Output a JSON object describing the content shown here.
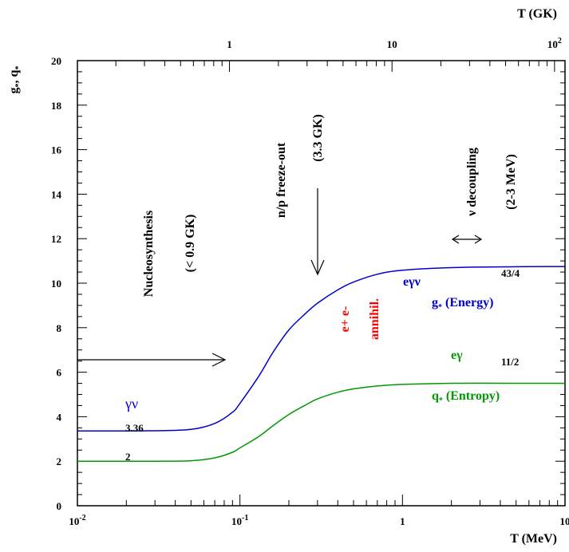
{
  "chart_data": {
    "type": "line",
    "title": "",
    "xlabel": "T (MeV)",
    "ylabel": "g*, q*",
    "top_xlabel": "T (GK)",
    "x_scale": "log",
    "xlim": [
      0.01,
      10
    ],
    "ylim": [
      0,
      20
    ],
    "top_xlim_GK": [
      0.116,
      116
    ],
    "y_ticks": [
      "0",
      "2",
      "4",
      "6",
      "8",
      "10",
      "12",
      "14",
      "16",
      "18",
      "20"
    ],
    "x_tick_labels": [
      {
        "base": "10",
        "exp": "-2"
      },
      {
        "base": "10",
        "exp": "-1"
      },
      {
        "base": "1",
        "exp": ""
      },
      {
        "base": "10",
        "exp": ""
      }
    ],
    "top_tick_labels": [
      {
        "base": "1",
        "exp": ""
      },
      {
        "base": "10",
        "exp": ""
      },
      {
        "base": "10",
        "exp": "2"
      }
    ],
    "series": [
      {
        "name": "g* (Energy)",
        "color": "#0000cc",
        "x": [
          0.01,
          0.03,
          0.05,
          0.07,
          0.09,
          0.1,
          0.13,
          0.16,
          0.2,
          0.25,
          0.3,
          0.4,
          0.5,
          0.7,
          1,
          2,
          5,
          10
        ],
        "y": [
          3.36,
          3.37,
          3.43,
          3.7,
          4.2,
          4.6,
          5.8,
          6.9,
          7.9,
          8.6,
          9.1,
          9.7,
          10.05,
          10.4,
          10.58,
          10.7,
          10.74,
          10.75
        ]
      },
      {
        "name": "q* (Entropy)",
        "color": "#009900",
        "x": [
          0.01,
          0.03,
          0.05,
          0.07,
          0.09,
          0.1,
          0.13,
          0.16,
          0.2,
          0.25,
          0.3,
          0.4,
          0.5,
          0.7,
          1,
          2,
          5,
          10
        ],
        "y": [
          2.0,
          2.0,
          2.02,
          2.15,
          2.4,
          2.6,
          3.1,
          3.6,
          4.1,
          4.5,
          4.8,
          5.1,
          5.25,
          5.38,
          5.45,
          5.5,
          5.5,
          5.5
        ]
      }
    ],
    "series_labels": {
      "energy_name": "g* (Energy)",
      "entropy_name": "q* (Entropy)",
      "g_star_base": "g",
      "g_star_suffix": " (Energy)",
      "q_star_base": "q",
      "q_star_suffix": " (Entropy)",
      "star": "*",
      "low_energy": "γν",
      "low_energy_value": "3.36",
      "low_entropy_value": "2",
      "high_energy": "eγν",
      "high_energy_value": "43/4",
      "high_entropy": "eγ",
      "high_entropy_value": "11/2"
    },
    "annotations": {
      "nucleosynthesis": "Nucleosynthesis",
      "nucleosynthesis_temp": "(< 0.9 GK)",
      "freeze_out": "n/p freeze-out",
      "freeze_out_temp": "(3.3 GK)",
      "decoupling": "ν decoupling",
      "decoupling_temp": "(2-3 MeV)",
      "annihilation_line1": "e+ e-",
      "annihilation_line2": "annihil.",
      "annihilation_color": "#ff0000"
    }
  }
}
